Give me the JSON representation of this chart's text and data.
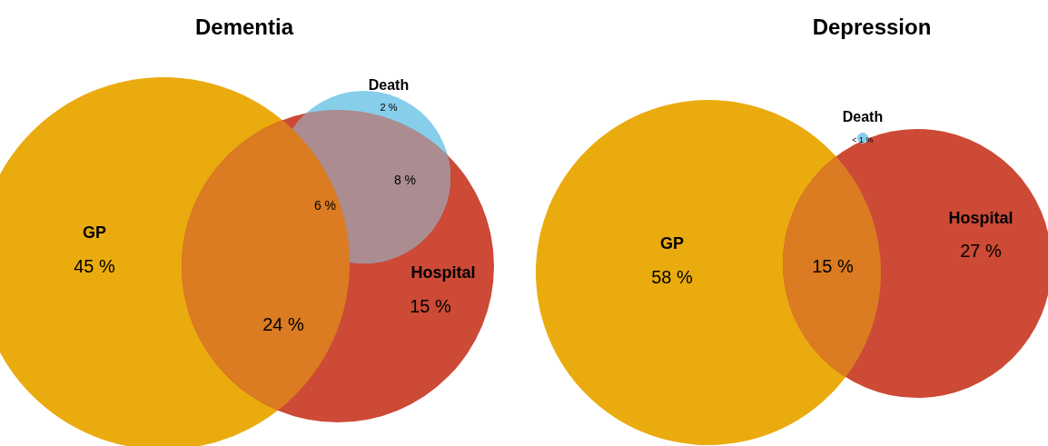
{
  "chart_data": [
    {
      "type": "other",
      "title": "Dementia",
      "categories": [
        "GP",
        "Hospital",
        "Death"
      ],
      "colors": [
        "#eaab0e",
        "#cc4a36",
        "#87ceeb"
      ],
      "values": [
        45,
        15,
        2
      ],
      "value_labels": [
        "45 %",
        "15 %",
        "2 %"
      ],
      "annotations": [
        "24 %",
        "6 %",
        "8 %"
      ]
    },
    {
      "type": "other",
      "title": "Depression",
      "categories": [
        "GP",
        "Hospital",
        "Death"
      ],
      "colors": [
        "#eaab0e",
        "#cc4a36",
        "#87ceeb"
      ],
      "values": [
        58,
        27,
        null
      ],
      "value_labels": [
        "58 %",
        "27 %",
        "< 1 %"
      ],
      "annotations": [
        "15 %"
      ]
    }
  ]
}
